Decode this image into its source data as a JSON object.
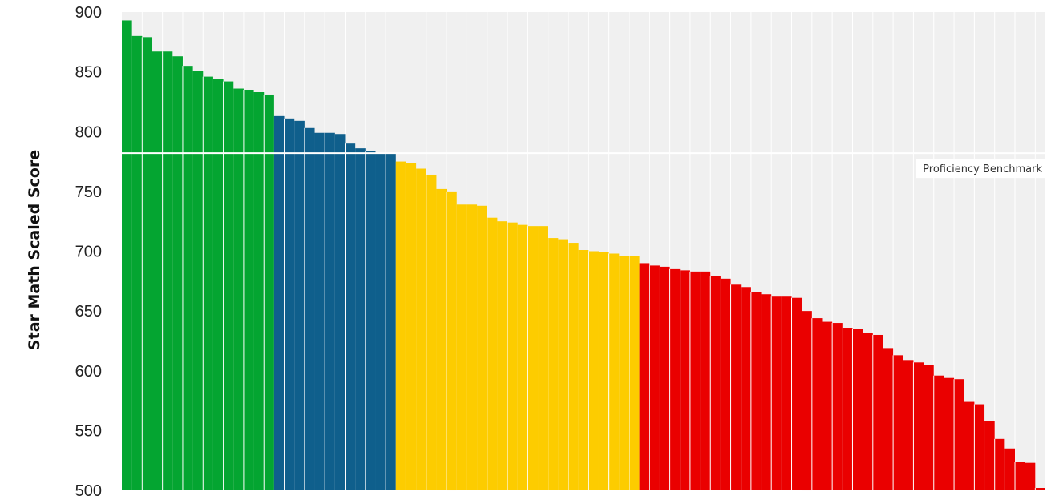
{
  "chart_data": {
    "type": "bar",
    "ylabel": "Star Math Scaled Score",
    "xlabel": "",
    "ylim": [
      500,
      900
    ],
    "yticks": [
      900,
      850,
      800,
      750,
      700,
      650,
      600,
      550,
      500
    ],
    "grid": true,
    "benchmark": {
      "label": "Proficiency Benchmark",
      "value": 782
    },
    "colors": {
      "green": "#04a531",
      "blue": "#0f5f8c",
      "yellow": "#fdcc00",
      "red": "#ea0000",
      "plot_background": "#f0f0f0",
      "benchmark_line": "#ffffff"
    },
    "series": [
      {
        "color_key": "green",
        "values": [
          893,
          880,
          879,
          867,
          867,
          863,
          855,
          851,
          846,
          844,
          842,
          836,
          835,
          833,
          831
        ]
      },
      {
        "color_key": "blue",
        "values": [
          813,
          811,
          809,
          803,
          799,
          799,
          798,
          790,
          786,
          784,
          782,
          782
        ]
      },
      {
        "color_key": "yellow",
        "values": [
          775,
          774,
          769,
          764,
          752,
          750,
          739,
          739,
          738,
          728,
          725,
          724,
          722,
          721,
          721,
          711,
          710,
          707,
          701,
          700,
          699,
          698,
          696,
          696
        ]
      },
      {
        "color_key": "red",
        "values": [
          690,
          688,
          687,
          685,
          684,
          683,
          683,
          679,
          677,
          672,
          670,
          666,
          664,
          662,
          662,
          661,
          650,
          644,
          641,
          640,
          636,
          635,
          632,
          630,
          619,
          613,
          609,
          607,
          605,
          596,
          594,
          593,
          574,
          572,
          558,
          543,
          535,
          524,
          523,
          502
        ]
      }
    ]
  }
}
